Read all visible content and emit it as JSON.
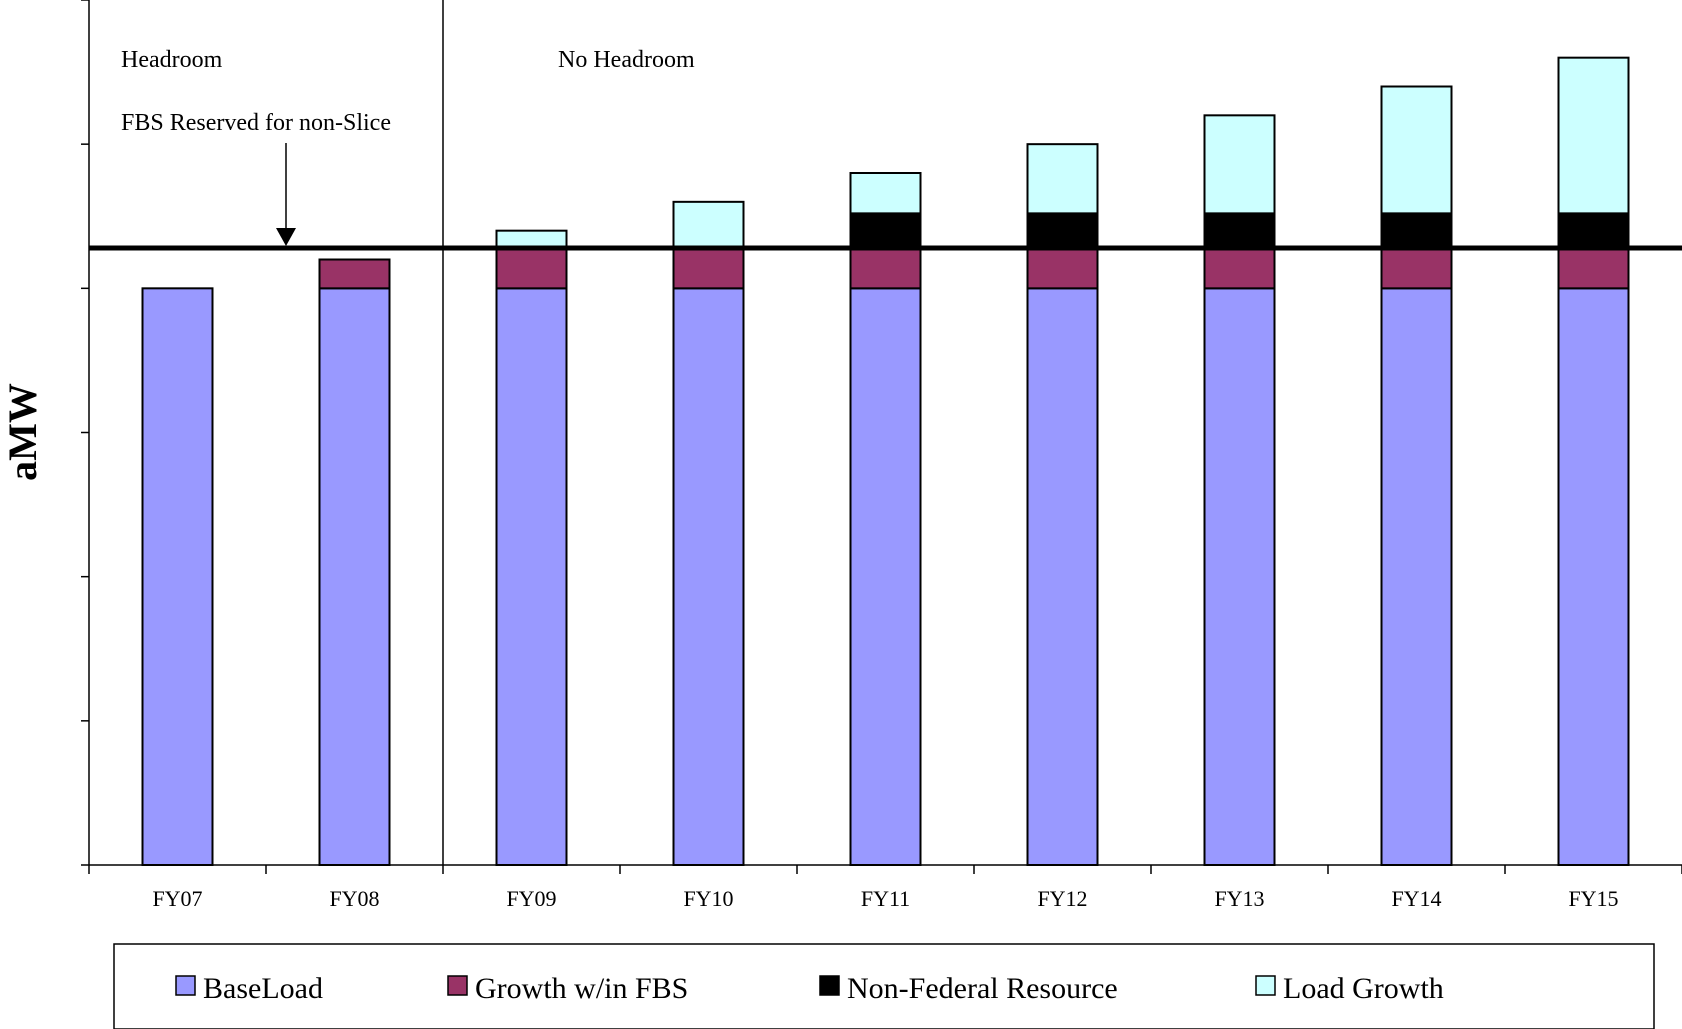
{
  "chart_data": {
    "type": "bar",
    "stacked": true,
    "title": "",
    "xlabel": "",
    "ylabel": "aMW",
    "categories": [
      "FY07",
      "FY08",
      "FY09",
      "FY10",
      "FY11",
      "FY12",
      "FY13",
      "FY14",
      "FY15"
    ],
    "series": [
      {
        "name": "BaseLoad",
        "color": "#9999FF",
        "values": [
          100,
          100,
          100,
          100,
          100,
          100,
          100,
          100,
          100
        ]
      },
      {
        "name": "Growth w/in FBS",
        "color": "#993366",
        "values": [
          0,
          5,
          7,
          7,
          7,
          7,
          7,
          7,
          7
        ]
      },
      {
        "name": "Non-Federal Resource",
        "color": "#000000",
        "values": [
          0,
          0,
          0,
          0,
          6,
          6,
          6,
          6,
          6
        ]
      },
      {
        "name": "Load Growth",
        "color": "#CCFFFF",
        "values": [
          0,
          0,
          3,
          8,
          7,
          12,
          17,
          22,
          27
        ]
      }
    ],
    "ylim": [
      0,
      150
    ],
    "ytick_count": 7,
    "ytick_labels_shown": false,
    "reference_line": {
      "value": 107,
      "label": "FBS Reserved for non-Slice"
    },
    "regions": [
      {
        "label": "Headroom",
        "categories": [
          "FY07",
          "FY08"
        ]
      },
      {
        "label": "No Headroom",
        "categories": [
          "FY09",
          "FY10",
          "FY11",
          "FY12",
          "FY13",
          "FY14",
          "FY15"
        ]
      }
    ],
    "grid": false,
    "legend": {
      "position": "bottom"
    }
  }
}
